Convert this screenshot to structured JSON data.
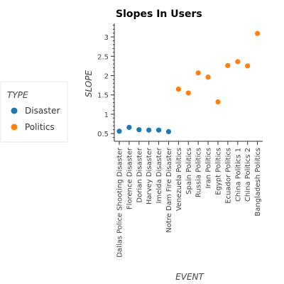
{
  "chart_data": {
    "type": "scatter",
    "title": "Slopes In Users",
    "xlabel": "EVENT",
    "ylabel": "SLOPE",
    "ylim": [
      0.3,
      3.35
    ],
    "yticks": [
      0.5,
      1,
      1.5,
      2,
      2.5,
      3
    ],
    "ytick_labels": [
      "0.5",
      "1",
      "1.5",
      "2",
      "2.5",
      "3"
    ],
    "legend": {
      "title": "TYPE",
      "placement": "left"
    },
    "categories": [
      "Dallas Police Shooting Disaster",
      "Florence Disaster",
      "Dorian Disaster",
      "Harvey Disaster",
      "Imelda Disaster",
      "Notre Dam Fire Disaster",
      "Venezuela Politics",
      "Spain Politics",
      "Russia Politics",
      "Iran Politics",
      "Egypt Politics",
      "Ecuador Politics",
      "China Politics 1",
      "China Politics 2",
      "Bangladesh Politics"
    ],
    "series": [
      {
        "name": "Disaster",
        "color": "#1f77b4",
        "points": [
          {
            "x": "Dallas Police Shooting Disaster",
            "y": 0.56
          },
          {
            "x": "Florence Disaster",
            "y": 0.66
          },
          {
            "x": "Dorian Disaster",
            "y": 0.6
          },
          {
            "x": "Harvey Disaster",
            "y": 0.59
          },
          {
            "x": "Imelda Disaster",
            "y": 0.59
          },
          {
            "x": "Notre Dam Fire Disaster",
            "y": 0.55
          }
        ]
      },
      {
        "name": "Politics",
        "color": "#ff7f0e",
        "points": [
          {
            "x": "Venezuela Politics",
            "y": 1.65
          },
          {
            "x": "Spain Politics",
            "y": 1.55
          },
          {
            "x": "Russia Politics",
            "y": 2.07
          },
          {
            "x": "Iran Politics",
            "y": 1.96
          },
          {
            "x": "Egypt Politics",
            "y": 1.32
          },
          {
            "x": "Ecuador Politics",
            "y": 2.26
          },
          {
            "x": "China Politics 1",
            "y": 2.36
          },
          {
            "x": "China Politics 2",
            "y": 2.25
          },
          {
            "x": "Bangladesh Politics",
            "y": 3.09
          }
        ]
      }
    ]
  }
}
